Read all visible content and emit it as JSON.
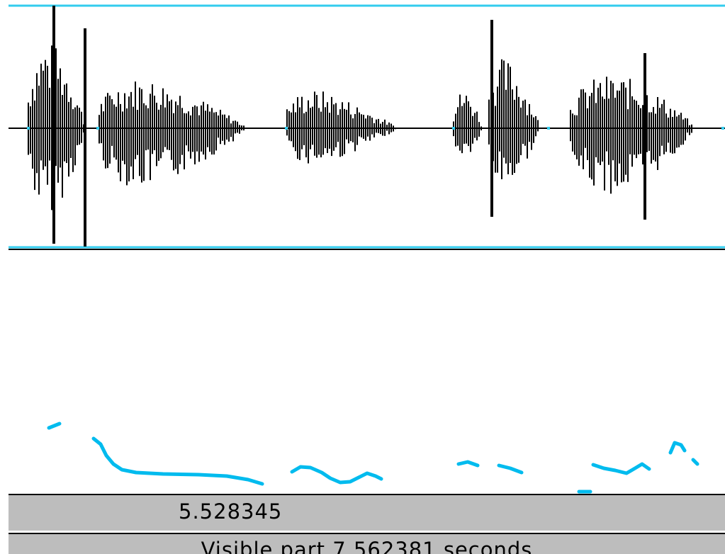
{
  "window": {
    "background": "#ffffff"
  },
  "colors": {
    "selection_line": "#33ccee",
    "waveform": "#000000",
    "pitch": "#00bbee",
    "bar_background": "#bdbdbd"
  },
  "status": {
    "cursor_time": "5.528345",
    "visible_part": "Visible part 7.562381 seconds"
  }
}
